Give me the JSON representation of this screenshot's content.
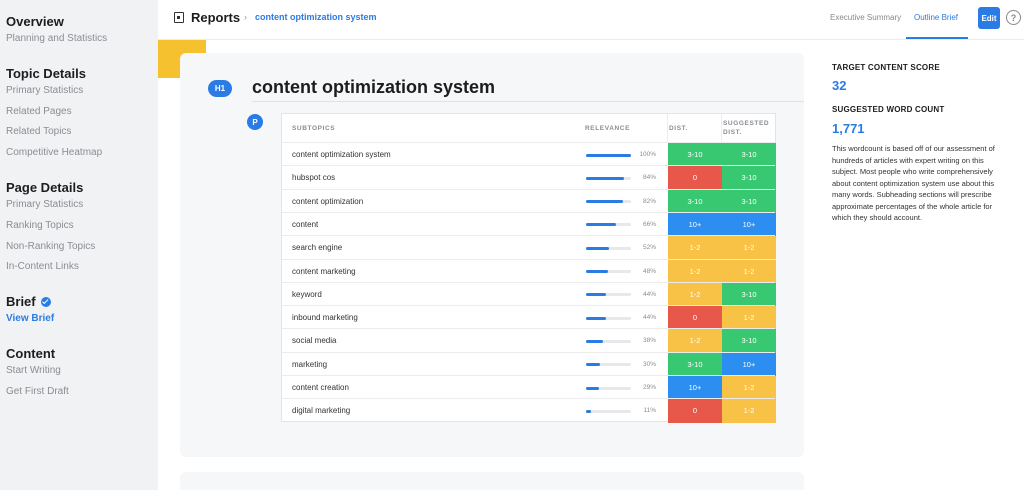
{
  "sidebar": {
    "sections": [
      {
        "title": "Overview",
        "items": [
          {
            "label": "Planning and Statistics",
            "active": false
          }
        ]
      },
      {
        "title": "Topic Details",
        "items": [
          {
            "label": "Primary Statistics",
            "active": false
          },
          {
            "label": "Related Pages",
            "active": false
          },
          {
            "label": "Related Topics",
            "active": false
          },
          {
            "label": "Competitive Heatmap",
            "active": false
          }
        ]
      },
      {
        "title": "Page Details",
        "items": [
          {
            "label": "Primary Statistics",
            "active": false
          },
          {
            "label": "Ranking Topics",
            "active": false
          },
          {
            "label": "Non-Ranking Topics",
            "active": false
          },
          {
            "label": "In-Content Links",
            "active": false
          }
        ]
      },
      {
        "title": "Brief",
        "verified": true,
        "items": [
          {
            "label": "View Brief",
            "active": true
          }
        ]
      },
      {
        "title": "Content",
        "items": [
          {
            "label": "Start Writing",
            "active": false
          },
          {
            "label": "Get First Draft",
            "active": false
          }
        ]
      }
    ]
  },
  "topbar": {
    "title": "Reports",
    "separator": "›",
    "breadcrumb": "content optimization system",
    "tabs": {
      "exec": "Executive Summary",
      "outline": "Outline Brief"
    },
    "active_tab": "outline",
    "edit_label": "Edit",
    "help_label": "?"
  },
  "main": {
    "h1_badge": "H1",
    "p_badge": "P",
    "title": "content optimization system"
  },
  "table": {
    "headers": {
      "subtopics": "SUBTOPICS",
      "relevance": "RELEVANCE",
      "dist": "DIST.",
      "suggested": "SUGGESTED DIST."
    },
    "rows": [
      {
        "name": "content optimization system",
        "relevance": 100,
        "relevance_label": "100%",
        "dist": "3-10",
        "dist_color": "green",
        "sugg": "3-10",
        "sugg_color": "green"
      },
      {
        "name": "hubspot cos",
        "relevance": 84,
        "relevance_label": "84%",
        "dist": "0",
        "dist_color": "red",
        "sugg": "3-10",
        "sugg_color": "green"
      },
      {
        "name": "content optimization",
        "relevance": 82,
        "relevance_label": "82%",
        "dist": "3-10",
        "dist_color": "green",
        "sugg": "3-10",
        "sugg_color": "green"
      },
      {
        "name": "content",
        "relevance": 66,
        "relevance_label": "66%",
        "dist": "10+",
        "dist_color": "blue",
        "sugg": "10+",
        "sugg_color": "blue"
      },
      {
        "name": "search engine",
        "relevance": 52,
        "relevance_label": "52%",
        "dist": "1-2",
        "dist_color": "yellow",
        "sugg": "1-2",
        "sugg_color": "yellow"
      },
      {
        "name": "content marketing",
        "relevance": 48,
        "relevance_label": "48%",
        "dist": "1-2",
        "dist_color": "yellow",
        "sugg": "1-2",
        "sugg_color": "yellow"
      },
      {
        "name": "keyword",
        "relevance": 44,
        "relevance_label": "44%",
        "dist": "1-2",
        "dist_color": "yellow",
        "sugg": "3-10",
        "sugg_color": "green"
      },
      {
        "name": "inbound marketing",
        "relevance": 44,
        "relevance_label": "44%",
        "dist": "0",
        "dist_color": "red",
        "sugg": "1-2",
        "sugg_color": "yellow"
      },
      {
        "name": "social media",
        "relevance": 38,
        "relevance_label": "38%",
        "dist": "1-2",
        "dist_color": "yellow",
        "sugg": "3-10",
        "sugg_color": "green"
      },
      {
        "name": "marketing",
        "relevance": 30,
        "relevance_label": "30%",
        "dist": "3-10",
        "dist_color": "green",
        "sugg": "10+",
        "sugg_color": "blue"
      },
      {
        "name": "content creation",
        "relevance": 29,
        "relevance_label": "29%",
        "dist": "10+",
        "dist_color": "blue",
        "sugg": "1-2",
        "sugg_color": "yellow"
      },
      {
        "name": "digital marketing",
        "relevance": 11,
        "relevance_label": "11%",
        "dist": "0",
        "dist_color": "red",
        "sugg": "1-2",
        "sugg_color": "yellow"
      }
    ]
  },
  "right_panel": {
    "target_label": "TARGET CONTENT SCORE",
    "target_value": "32",
    "word_label": "SUGGESTED WORD COUNT",
    "word_value": "1,771",
    "description": "This wordcount is based off of our assessment of hundreds of articles with expert writing on this subject. Most people who write comprehensively about content optimization system use about this many words. Subheading sections will prescribe approximate percentages of the whole article for which they should account."
  },
  "colors": {
    "accent": "#2b7be4",
    "green": "#38c872",
    "red": "#e8584a",
    "yellow": "#f8c246",
    "blue": "#2b8ef0"
  },
  "icons": {
    "report": "report-icon",
    "help": "help-icon",
    "verified": "check-badge-icon"
  }
}
